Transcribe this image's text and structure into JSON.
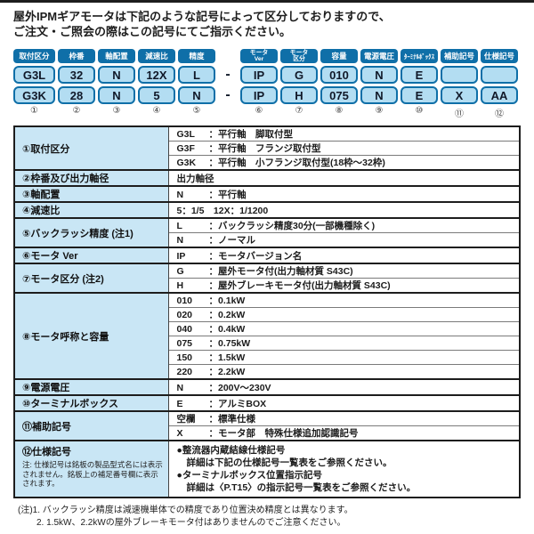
{
  "intro": {
    "line1": "屋外IPMギアモータは下記のような記号によって区分しておりますので、",
    "line2": "ご注文・ご照会の際はこの記号にてご指示ください。"
  },
  "colors": {
    "dark_blue": "#0f6fa8",
    "light_blue": "#b3ddf2",
    "label_blue": "#c9e6f5"
  },
  "code_grid": {
    "separator": "-",
    "columns": [
      {
        "badge": "取付区分",
        "row1": "G3L",
        "row2": "G3K",
        "num": "①"
      },
      {
        "badge": "枠番",
        "row1": "32",
        "row2": "28",
        "num": "②"
      },
      {
        "badge": "軸配置",
        "row1": "N",
        "row2": "N",
        "num": "③"
      },
      {
        "badge": "減速比",
        "row1": "12X",
        "row2": "5",
        "num": "④"
      },
      {
        "badge": "精度",
        "row1": "L",
        "row2": "N",
        "num": "⑤"
      },
      {
        "badge_top": "モータ",
        "badge_bottom": "Ver",
        "row1": "IP",
        "row2": "IP",
        "num": "⑥"
      },
      {
        "badge_top": "モータ",
        "badge_bottom": "区分",
        "row1": "G",
        "row2": "H",
        "num": "⑦"
      },
      {
        "badge": "容量",
        "row1": "010",
        "row2": "075",
        "num": "⑧"
      },
      {
        "badge": "電源電圧",
        "row1": "N",
        "row2": "N",
        "num": "⑨"
      },
      {
        "badge": "ﾀｰﾐﾅﾙﾎﾞｯｸｽ",
        "row1": "E",
        "row2": "E",
        "num": "⑩"
      },
      {
        "badge": "補助記号",
        "row1": "",
        "row2": "X",
        "num": "⑪"
      },
      {
        "badge": "仕様記号",
        "row1": "",
        "row2": "AA",
        "num": "⑫"
      }
    ]
  },
  "spec_table": {
    "rows": [
      {
        "label": "①取付区分",
        "subs": [
          {
            "code": "G3L",
            "desc": "：平行軸　脚取付型"
          },
          {
            "code": "G3F",
            "desc": "：平行軸　フランジ取付型"
          },
          {
            "code": "G3K",
            "desc": "：平行軸　小フランジ取付型(18枠～32枠)"
          }
        ]
      },
      {
        "label": "②枠番及び出力軸径",
        "subs": [
          {
            "code": "",
            "desc": "出力軸径"
          }
        ]
      },
      {
        "label": "③軸配置",
        "subs": [
          {
            "code": "N",
            "desc": "：平行軸"
          }
        ]
      },
      {
        "label": "④減速比",
        "subs": [
          {
            "code": "",
            "desc": "5：1/5　12X：1/1200"
          }
        ]
      },
      {
        "label": "⑤バックラッシ精度 (注1)",
        "subs": [
          {
            "code": "L",
            "desc": "：バックラッシ精度30分(一部機種除く)"
          },
          {
            "code": "N",
            "desc": "：ノーマル"
          }
        ]
      },
      {
        "label": "⑥モータ Ver",
        "subs": [
          {
            "code": "IP",
            "desc": "：モータバージョン名"
          }
        ]
      },
      {
        "label": "⑦モータ区分 (注2)",
        "subs": [
          {
            "code": "G",
            "desc": "：屋外モータ付(出力軸材質 S43C)"
          },
          {
            "code": "H",
            "desc": "：屋外ブレーキモータ付(出力軸材質 S43C)"
          }
        ]
      },
      {
        "label": "⑧モータ呼称と容量",
        "subs": [
          {
            "code": "010",
            "desc": "：0.1kW"
          },
          {
            "code": "020",
            "desc": "：0.2kW"
          },
          {
            "code": "040",
            "desc": "：0.4kW"
          },
          {
            "code": "075",
            "desc": "：0.75kW"
          },
          {
            "code": "150",
            "desc": "：1.5kW"
          },
          {
            "code": "220",
            "desc": "：2.2kW"
          }
        ]
      },
      {
        "label": "⑨電源電圧",
        "subs": [
          {
            "code": "N",
            "desc": "：200V～230V"
          }
        ]
      },
      {
        "label": "⑩ターミナルボックス",
        "subs": [
          {
            "code": "E",
            "desc": "：アルミBOX"
          }
        ]
      },
      {
        "label": "⑪補助記号",
        "subs": [
          {
            "code": "空欄",
            "desc": "：標準仕様"
          },
          {
            "code": "X",
            "desc": "：モータ部　特殊仕様追加認識記号"
          }
        ]
      }
    ],
    "spec_row": {
      "label": "⑫仕様記号",
      "label_note": "注: 仕様記号は銘板の製品型式名には表示されません。銘板上の補足番号欄に表示されます。",
      "bullet1": "●整流器内蔵結線仕様記号",
      "bullet1_detail": "詳細は下記の仕様記号一覧表をご参照ください。",
      "bullet2": "●ターミナルボックス位置指示記号",
      "bullet2_detail": "詳細は〈P.T15〉の指示記号一覧表をご参照ください。"
    }
  },
  "footnotes": {
    "note1": "(注)1. バックラッシ精度は減速機単体での精度であり位置決め精度とは異なります。",
    "note2": "2. 1.5kW、2.2kWの屋外ブレーキモータ付はありませんのでご注意ください。"
  }
}
